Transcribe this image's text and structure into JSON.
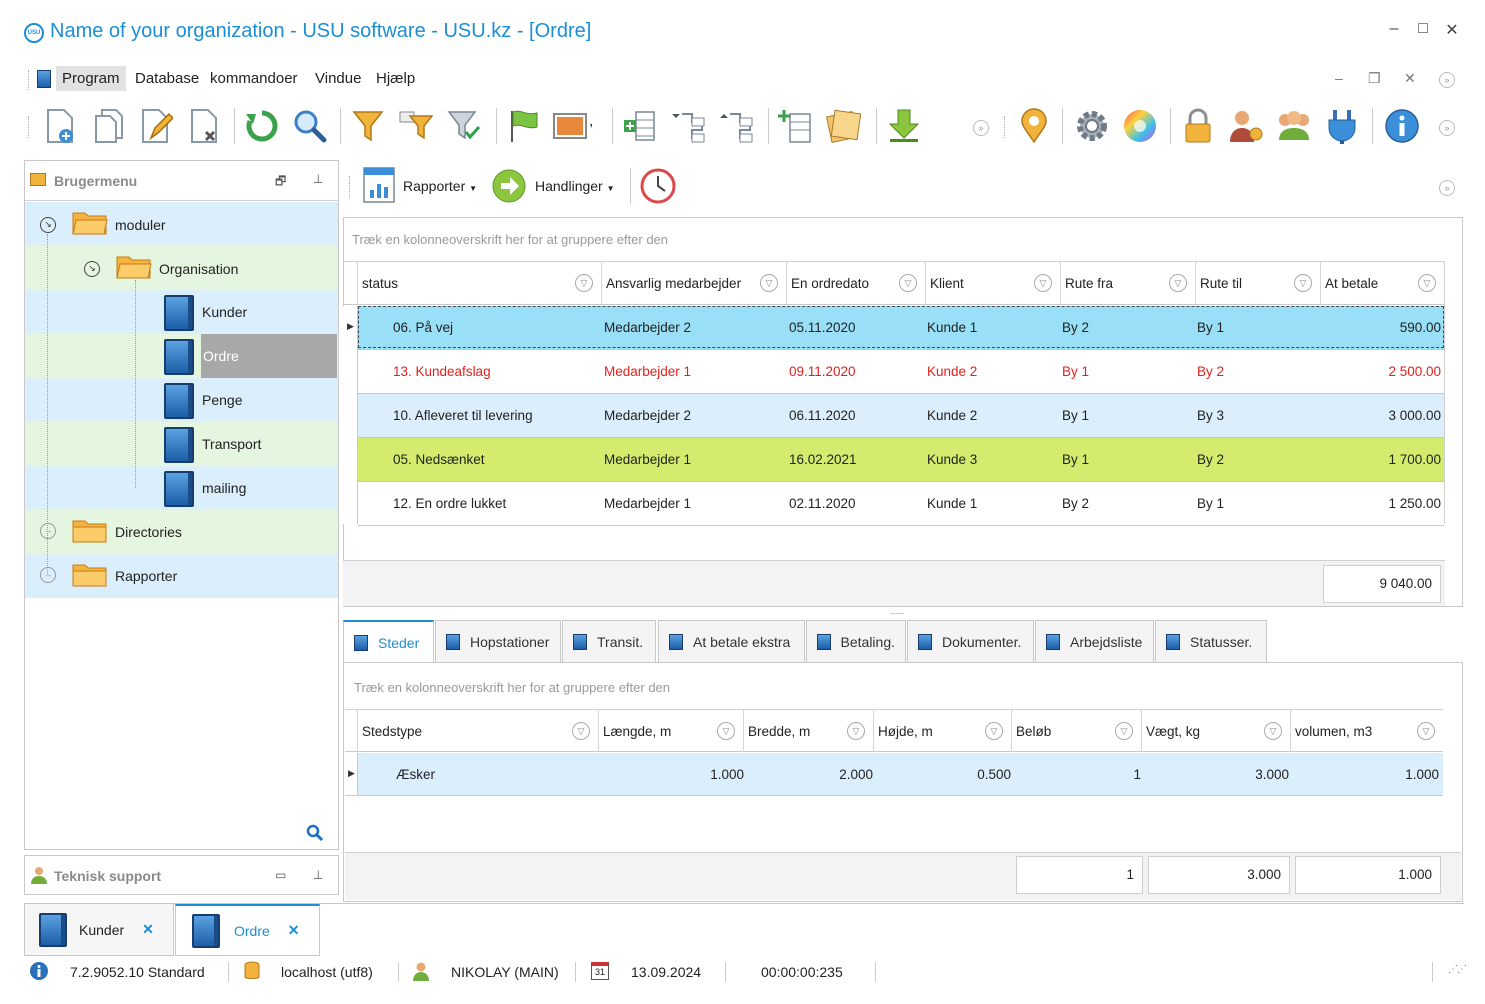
{
  "window": {
    "title": "Name of your organization - USU software - USU.kz - [Ordre]",
    "logo_text": "USU",
    "minimize": "–",
    "maximize": "□",
    "close": "✕"
  },
  "menu": {
    "items": [
      "Program",
      "Database",
      "kommandoer",
      "Vindue",
      "Hjælp"
    ]
  },
  "left_panel": {
    "title": "Brugermenu",
    "tree": [
      {
        "label": "moduler"
      },
      {
        "label": "Organisation"
      },
      {
        "label": "Kunder"
      },
      {
        "label": "Ordre"
      },
      {
        "label": "Penge"
      },
      {
        "label": "Transport"
      },
      {
        "label": "mailing"
      },
      {
        "label": "Directories"
      },
      {
        "label": "Rapporter"
      }
    ],
    "support_title": "Teknisk support"
  },
  "subtoolbar": {
    "reports_label": "Rapporter",
    "actions_label": "Handlinger"
  },
  "orders_grid": {
    "group_hint": "Træk en kolonneoverskrift her for at gruppere efter den",
    "columns": [
      "status",
      "Ansvarlig medarbejder",
      "En ordredato",
      "Klient",
      "Rute fra",
      "Rute til",
      "At betale"
    ],
    "rows": [
      [
        "06. På vej",
        "Medarbejder 2",
        "05.11.2020",
        "Kunde 1",
        "By 2",
        "By 1",
        "590.00"
      ],
      [
        "13. Kundeafslag",
        "Medarbejder 1",
        "09.11.2020",
        "Kunde 2",
        "By 1",
        "By 2",
        "2 500.00"
      ],
      [
        "10. Afleveret til levering",
        "Medarbejder 2",
        "06.11.2020",
        "Kunde 2",
        "By 1",
        "By 3",
        "3 000.00"
      ],
      [
        "05. Nedsænket",
        "Medarbejder 1",
        "16.02.2021",
        "Kunde 3",
        "By 1",
        "By 2",
        "1 700.00"
      ],
      [
        "12. En ordre lukket",
        "Medarbejder 1",
        "02.11.2020",
        "Kunde 1",
        "By 2",
        "By 1",
        "1 250.00"
      ]
    ],
    "row_colors": [
      "#99dff7",
      "#ffffff",
      "#dbeefb",
      "#d4ec6e",
      "#ffffff"
    ],
    "row_text_colors": [
      "#222222",
      "#e3201b",
      "#222222",
      "#222222",
      "#222222"
    ],
    "total": "9 040.00"
  },
  "detail_tabs": [
    "Steder",
    "Hopstationer",
    "Transit.",
    "At betale ekstra",
    "Betaling.",
    "Dokumenter.",
    "Arbejdsliste",
    "Statusser."
  ],
  "places_grid": {
    "group_hint": "Træk en kolonneoverskrift her for at gruppere efter den",
    "columns": [
      "Stedstype",
      "Længde, m",
      "Bredde, m",
      "Højde, m",
      "Beløb",
      "Vægt, kg",
      "volumen, m3"
    ],
    "rows": [
      [
        "Æsker",
        "1.000",
        "2.000",
        "0.500",
        "1",
        "3.000",
        "1.000"
      ]
    ],
    "totals": [
      "1",
      "3.000",
      "1.000"
    ]
  },
  "doc_tabs": [
    "Kunder",
    "Ordre"
  ],
  "status_bar": {
    "version": "7.2.9052.10 Standard",
    "server": "localhost (utf8)",
    "user": "NIKOLAY (MAIN)",
    "calendar_day": "31",
    "date": "13.09.2024",
    "timer": "00:00:00:235"
  }
}
